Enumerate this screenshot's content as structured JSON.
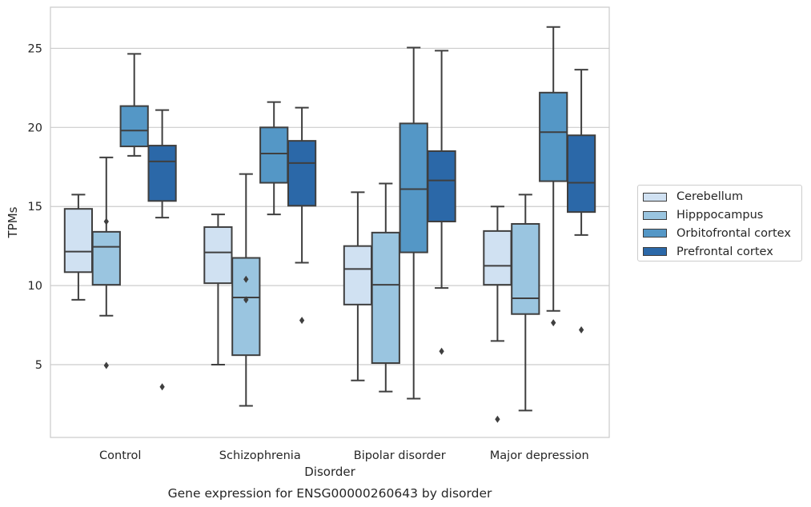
{
  "chart_data": {
    "type": "box",
    "title": "Gene expression for ENSG00000260643 by disorder",
    "xlabel": "Disorder",
    "ylabel": "TPMs",
    "ylim": [
      0.4,
      27.6
    ],
    "yticks": [
      5,
      10,
      15,
      20,
      25
    ],
    "grid": "horizontal",
    "legend_position": "right",
    "categories": [
      "Control",
      "Schizophrenia",
      "Bipolar disorder",
      "Major depression"
    ],
    "series": [
      {
        "name": "Cerebellum",
        "color": "#d0e1f2",
        "boxes": [
          {
            "whislo": 9.1,
            "q1": 10.85,
            "med": 12.15,
            "q3": 14.85,
            "whishi": 15.75,
            "fliers": []
          },
          {
            "whislo": 5.0,
            "q1": 10.15,
            "med": 12.1,
            "q3": 13.7,
            "whishi": 14.5,
            "fliers": []
          },
          {
            "whislo": 4.0,
            "q1": 8.8,
            "med": 11.05,
            "q3": 12.5,
            "whishi": 15.9,
            "fliers": []
          },
          {
            "whislo": 6.5,
            "q1": 10.05,
            "med": 11.25,
            "q3": 13.45,
            "whishi": 15.0,
            "fliers": [
              1.55
            ]
          }
        ]
      },
      {
        "name": "Hipppocampus",
        "color": "#9ac5e0",
        "boxes": [
          {
            "whislo": 8.1,
            "q1": 10.05,
            "med": 12.45,
            "q3": 13.4,
            "whishi": 18.1,
            "fliers": [
              4.95,
              14.05
            ]
          },
          {
            "whislo": 2.4,
            "q1": 5.6,
            "med": 9.25,
            "q3": 11.75,
            "whishi": 17.05,
            "fliers": [
              10.4,
              9.1
            ]
          },
          {
            "whislo": 3.3,
            "q1": 5.1,
            "med": 10.05,
            "q3": 13.35,
            "whishi": 16.45,
            "fliers": []
          },
          {
            "whislo": 2.1,
            "q1": 8.2,
            "med": 9.2,
            "q3": 13.9,
            "whishi": 15.75,
            "fliers": []
          }
        ]
      },
      {
        "name": "Orbitofrontal cortex",
        "color": "#5497c6",
        "boxes": [
          {
            "whislo": 18.2,
            "q1": 18.8,
            "med": 19.8,
            "q3": 21.35,
            "whishi": 24.65,
            "fliers": []
          },
          {
            "whislo": 14.5,
            "q1": 16.5,
            "med": 18.35,
            "q3": 20.0,
            "whishi": 21.6,
            "fliers": []
          },
          {
            "whislo": 2.85,
            "q1": 12.1,
            "med": 16.1,
            "q3": 20.25,
            "whishi": 25.05,
            "fliers": []
          },
          {
            "whislo": 8.4,
            "q1": 16.6,
            "med": 19.7,
            "q3": 22.2,
            "whishi": 26.35,
            "fliers": [
              7.65
            ]
          }
        ]
      },
      {
        "name": "Prefrontal cortex",
        "color": "#2b68a8",
        "boxes": [
          {
            "whislo": 14.3,
            "q1": 15.35,
            "med": 17.85,
            "q3": 18.85,
            "whishi": 21.1,
            "fliers": [
              3.6
            ]
          },
          {
            "whislo": 11.45,
            "q1": 15.05,
            "med": 17.75,
            "q3": 19.15,
            "whishi": 21.25,
            "fliers": [
              7.8
            ]
          },
          {
            "whislo": 9.85,
            "q1": 14.05,
            "med": 16.65,
            "q3": 18.5,
            "whishi": 24.85,
            "fliers": [
              5.85
            ]
          },
          {
            "whislo": 13.2,
            "q1": 14.65,
            "med": 16.5,
            "q3": 19.5,
            "whishi": 23.65,
            "fliers": [
              7.2
            ]
          }
        ]
      }
    ]
  }
}
